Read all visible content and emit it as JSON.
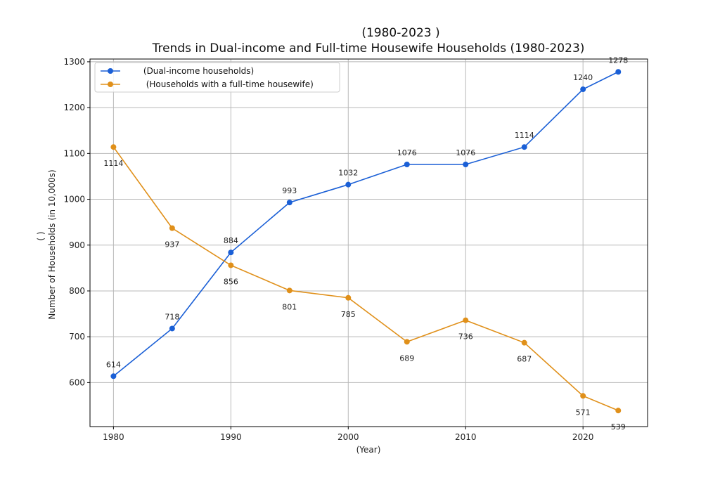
{
  "chart_data": {
    "type": "line",
    "title_line1": "(1980-2023 )",
    "title_line2": "Trends in Dual-income and Full-time Housewife Households (1980-2023)",
    "xlabel": "(Year)",
    "ylabel_line1": "(   )",
    "ylabel_line2": "Number of Households (in 10,000s)",
    "x": [
      1980,
      1985,
      1990,
      1995,
      2000,
      2005,
      2010,
      2015,
      2020,
      2023
    ],
    "xlim": [
      1978,
      2025.5
    ],
    "ylim": [
      504,
      1306
    ],
    "xticks": [
      1980,
      1990,
      2000,
      2010,
      2020
    ],
    "yticks": [
      600,
      700,
      800,
      900,
      1000,
      1100,
      1200,
      1300
    ],
    "grid": true,
    "legend_position": "top-left",
    "series": [
      {
        "name": "      (Dual-income households)",
        "color": "#1a5fd6",
        "values": [
          614,
          718,
          884,
          993,
          1032,
          1076,
          1076,
          1114,
          1240,
          1278
        ],
        "label_position": "above"
      },
      {
        "name": "       (Households with a full-time housewife)",
        "color": "#e0901a",
        "values": [
          1114,
          937,
          856,
          801,
          785,
          689,
          736,
          687,
          571,
          539
        ],
        "label_position": "below"
      }
    ]
  }
}
